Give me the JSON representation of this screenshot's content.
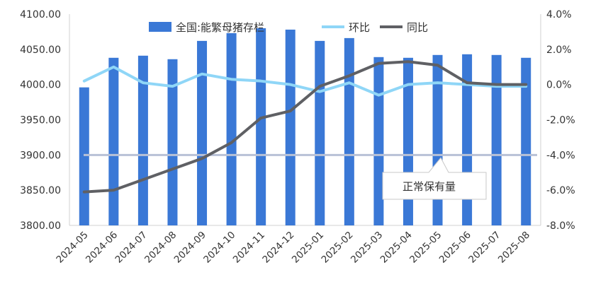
{
  "chart_data": {
    "type": "bar",
    "categories": [
      "2024-05",
      "2024-06",
      "2024-07",
      "2024-08",
      "2024-09",
      "2024-10",
      "2024-11",
      "2024-12",
      "2025-01",
      "2025-02",
      "2025-03",
      "2025-04",
      "2025-05",
      "2025-06",
      "2025-07",
      "2025-08"
    ],
    "series": [
      {
        "name": "全国:能繁母猪存栏",
        "type": "bar",
        "axis": "left",
        "color": "#3a78d6",
        "values": [
          3996,
          4038,
          4041,
          4036,
          4062,
          4073,
          4080,
          4078,
          4062,
          4066,
          4039,
          4038,
          4042,
          4043,
          4042,
          4038
        ]
      },
      {
        "name": "环比",
        "type": "line",
        "axis": "right",
        "color": "#8fd6f7",
        "values": [
          0.2,
          1.0,
          0.1,
          -0.1,
          0.6,
          0.3,
          0.2,
          0.0,
          -0.4,
          0.1,
          -0.6,
          0.0,
          0.1,
          0.0,
          -0.1,
          -0.1
        ]
      },
      {
        "name": "同比",
        "type": "line",
        "axis": "right",
        "color": "#5f6064",
        "values": [
          -6.1,
          -6.0,
          -5.4,
          -4.8,
          -4.2,
          -3.3,
          -1.9,
          -1.5,
          -0.1,
          0.5,
          1.2,
          1.3,
          1.1,
          0.1,
          0.0,
          0.0
        ]
      }
    ],
    "reference_line": {
      "value": 3900,
      "axis": "left",
      "color": "#b8c1d6",
      "label": "正常保有量"
    },
    "left_axis": {
      "ylim": [
        3800,
        4100
      ],
      "ticks": [
        "3800.00",
        "3850.00",
        "3900.00",
        "3950.00",
        "4000.00",
        "4050.00",
        "4100.00"
      ]
    },
    "right_axis": {
      "ylim": [
        -8.0,
        4.0
      ],
      "ticks": [
        "-8.0%",
        "-6.0%",
        "-4.0%",
        "-2.0%",
        "0.0%",
        "2.0%",
        "4.0%"
      ]
    },
    "legend": {
      "position": "top-center"
    },
    "grid": false,
    "title": "",
    "xlabel": "",
    "ylabel": ""
  }
}
